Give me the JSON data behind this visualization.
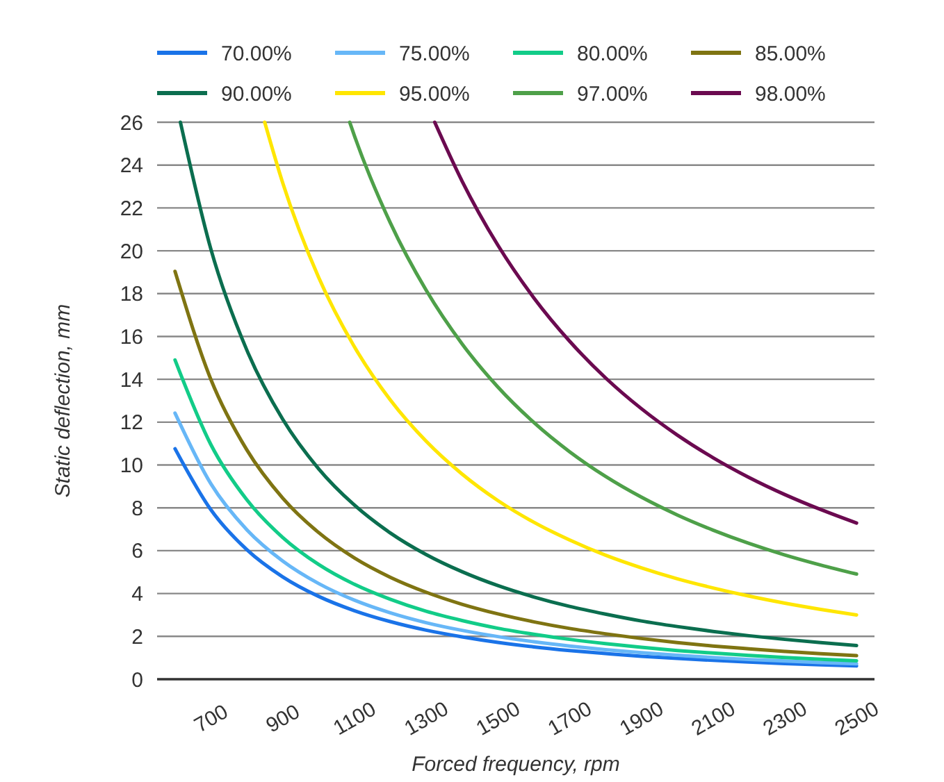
{
  "chart_data": {
    "type": "line",
    "xlabel": "Forced frequency, rpm",
    "ylabel": "Static deflection, mm",
    "xlim": [
      550,
      2550
    ],
    "xticks": [
      700,
      900,
      1100,
      1300,
      1500,
      1700,
      1900,
      2100,
      2300,
      2500
    ],
    "ylim": [
      0,
      26
    ],
    "yticks": [
      0,
      2,
      4,
      6,
      8,
      10,
      12,
      14,
      16,
      18,
      20,
      22,
      24,
      26
    ],
    "grid": "y",
    "legend": "top",
    "marker": "none",
    "line_style": "solid",
    "x": [
      600,
      700,
      800,
      900,
      1000,
      1100,
      1200,
      1300,
      1400,
      1500,
      1600,
      1700,
      1800,
      1900,
      2000,
      2100,
      2200,
      2300,
      2400,
      2500
    ],
    "series": [
      {
        "name": "70.00%",
        "color": "#1a73e8",
        "values": [
          10.76,
          7.91,
          6.05,
          4.78,
          3.87,
          3.2,
          2.69,
          2.29,
          1.98,
          1.72,
          1.51,
          1.34,
          1.2,
          1.07,
          0.97,
          0.88,
          0.8,
          0.73,
          0.67,
          0.62
        ]
      },
      {
        "name": "75.00%",
        "color": "#67b7f7",
        "values": [
          12.42,
          9.12,
          6.98,
          5.52,
          4.47,
          3.69,
          3.1,
          2.64,
          2.28,
          1.99,
          1.75,
          1.55,
          1.38,
          1.24,
          1.12,
          1.01,
          0.92,
          0.85,
          0.78,
          0.72
        ]
      },
      {
        "name": "80.00%",
        "color": "#12cc88",
        "values": [
          14.9,
          10.95,
          8.38,
          6.62,
          5.36,
          4.43,
          3.73,
          3.17,
          2.74,
          2.38,
          2.1,
          1.86,
          1.66,
          1.49,
          1.34,
          1.22,
          1.11,
          1.01,
          0.93,
          0.86
        ]
      },
      {
        "name": "85.00%",
        "color": "#7f7412",
        "values": [
          19.04,
          13.99,
          10.71,
          8.46,
          6.85,
          5.66,
          4.76,
          4.06,
          3.5,
          3.05,
          2.68,
          2.37,
          2.12,
          1.9,
          1.71,
          1.55,
          1.42,
          1.3,
          1.19,
          1.1
        ]
      },
      {
        "name": "90.00%",
        "color": "#0b6e4f",
        "x": [
          615,
          700,
          800,
          900,
          1000,
          1100,
          1200,
          1300,
          1400,
          1500,
          1600,
          1700,
          1800,
          1900,
          2000,
          2100,
          2200,
          2300,
          2400,
          2500
        ],
        "values": [
          26,
          20.07,
          15.37,
          12.14,
          9.83,
          8.13,
          6.83,
          5.82,
          5.02,
          4.37,
          3.84,
          3.4,
          3.04,
          2.72,
          2.46,
          2.23,
          2.03,
          1.86,
          1.71,
          1.57
        ]
      },
      {
        "name": "95.00%",
        "color": "#ffe600",
        "x": [
          850,
          900,
          1000,
          1100,
          1200,
          1300,
          1400,
          1500,
          1600,
          1700,
          1800,
          1900,
          2000,
          2100,
          2200,
          2300,
          2400,
          2500
        ],
        "values": [
          26,
          23.18,
          18.77,
          15.52,
          13.04,
          11.11,
          9.58,
          8.34,
          7.33,
          6.5,
          5.79,
          5.2,
          4.69,
          4.26,
          3.88,
          3.55,
          3.26,
          3.0
        ]
      },
      {
        "name": "97.00%",
        "color": "#4ea049",
        "x": [
          1087,
          1100,
          1200,
          1300,
          1400,
          1500,
          1600,
          1700,
          1800,
          1900,
          2000,
          2100,
          2200,
          2300,
          2400,
          2500
        ],
        "values": [
          26,
          25.37,
          21.31,
          18.16,
          15.66,
          13.64,
          11.99,
          10.62,
          9.47,
          8.5,
          7.67,
          6.96,
          6.34,
          5.8,
          5.33,
          4.91
        ]
      },
      {
        "name": "98.00%",
        "color": "#6b0a50",
        "x": [
          1324,
          1400,
          1500,
          1600,
          1700,
          1800,
          1900,
          2000,
          2100,
          2200,
          2300,
          2400,
          2500
        ],
        "values": [
          26,
          23.26,
          20.26,
          17.81,
          15.78,
          14.07,
          12.63,
          11.4,
          10.34,
          9.42,
          8.62,
          7.92,
          7.29
        ]
      }
    ]
  }
}
